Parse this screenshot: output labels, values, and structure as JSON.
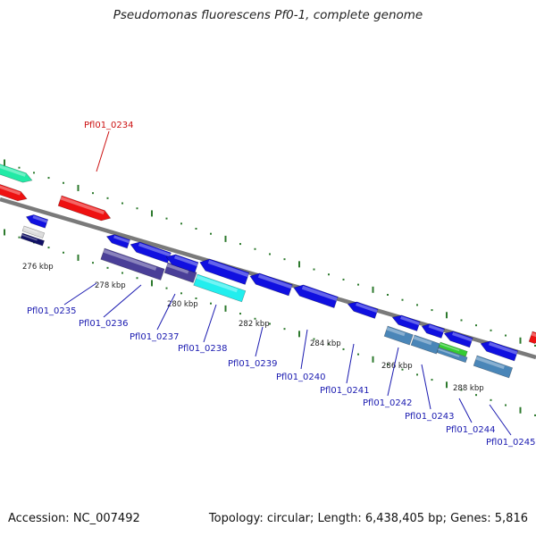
{
  "title": "Pseudomonas fluorescens Pf0-1, complete genome",
  "accession": "Accession: NC_007492",
  "topology": "Topology: circular; Length: 6,438,405 bp; Genes: 5,816",
  "colors": {
    "backbone": "#7a7a7a",
    "blue": "#1010e0",
    "red": "#ee1111",
    "cyan": "#22eeee",
    "navy": "#4a3f98",
    "steel": "#4a86b8",
    "green": "#33cc33",
    "teal": "#22eaa6",
    "tick": "#2d7a2d",
    "label_red": "#cc1111",
    "label_blue": "#1a1ab0"
  },
  "ticks": {
    "labels": [
      "276 kbp",
      "278 kbp",
      "280 kbp",
      "282 kbp",
      "284 kbp",
      "286 kbp",
      "288 kbp"
    ]
  },
  "genes": [
    {
      "id": "Pfl01_0234",
      "color": "red",
      "strand": "+"
    },
    {
      "id": "Pfl01_0235",
      "color": "navy",
      "strand": "-"
    },
    {
      "id": "Pfl01_0236",
      "color": "navy",
      "strand": "-"
    },
    {
      "id": "Pfl01_0237",
      "color": "blue",
      "strand": "-"
    },
    {
      "id": "Pfl01_0238",
      "color": "cyan",
      "strand": "-"
    },
    {
      "id": "Pfl01_0239",
      "color": "blue",
      "strand": "-"
    },
    {
      "id": "Pfl01_0240",
      "color": "blue",
      "strand": "-"
    },
    {
      "id": "Pfl01_0241",
      "color": "blue",
      "strand": "-"
    },
    {
      "id": "Pfl01_0242",
      "color": "steel",
      "strand": "-"
    },
    {
      "id": "Pfl01_0243",
      "color": "steel",
      "strand": "-"
    },
    {
      "id": "Pfl01_0244",
      "color": "blue",
      "strand": "-"
    },
    {
      "id": "Pfl01_0245",
      "color": "steel",
      "strand": "-"
    }
  ]
}
